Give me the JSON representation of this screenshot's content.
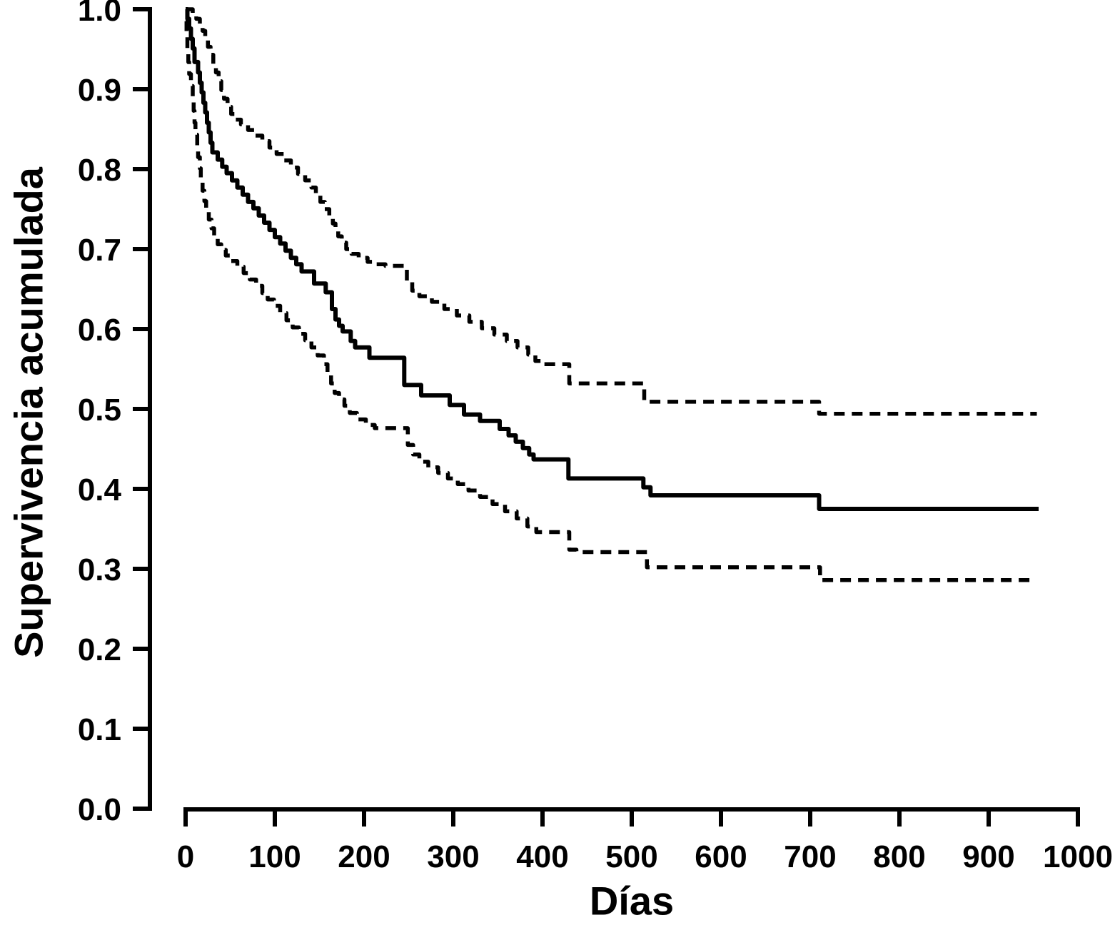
{
  "figure": {
    "background_color": "#ffffff",
    "ink_color": "#000000"
  },
  "chart_data": {
    "type": "line",
    "subtype": "kaplan_meier_step_curve",
    "title": "",
    "xlabel": "Días",
    "ylabel": "Supervivencia acumulada",
    "xlim": [
      0,
      1000
    ],
    "ylim": [
      0.0,
      1.0
    ],
    "x_ticks": [
      0,
      100,
      200,
      300,
      400,
      500,
      600,
      700,
      800,
      900,
      1000
    ],
    "y_tick_labels": [
      "0.0",
      "0.1",
      "0.2",
      "0.3",
      "0.4",
      "0.5",
      "0.6",
      "0.7",
      "0.8",
      "0.9",
      "1.0"
    ],
    "grid": false,
    "legend_position": "none",
    "series": [
      {
        "id": "estimate",
        "line_style": "solid",
        "step": true,
        "points": [
          [
            0,
            1.0
          ],
          [
            2,
            0.988
          ],
          [
            4,
            0.976
          ],
          [
            6,
            0.963
          ],
          [
            8,
            0.951
          ],
          [
            10,
            0.934
          ],
          [
            14,
            0.921
          ],
          [
            16,
            0.908
          ],
          [
            18,
            0.896
          ],
          [
            20,
            0.883
          ],
          [
            22,
            0.871
          ],
          [
            24,
            0.858
          ],
          [
            26,
            0.846
          ],
          [
            28,
            0.833
          ],
          [
            30,
            0.821
          ],
          [
            36,
            0.812
          ],
          [
            41,
            0.803
          ],
          [
            46,
            0.795
          ],
          [
            52,
            0.786
          ],
          [
            58,
            0.777
          ],
          [
            64,
            0.768
          ],
          [
            70,
            0.759
          ],
          [
            76,
            0.751
          ],
          [
            82,
            0.742
          ],
          [
            88,
            0.733
          ],
          [
            94,
            0.724
          ],
          [
            100,
            0.715
          ],
          [
            106,
            0.707
          ],
          [
            112,
            0.698
          ],
          [
            118,
            0.689
          ],
          [
            124,
            0.681
          ],
          [
            130,
            0.672
          ],
          [
            144,
            0.657
          ],
          [
            157,
            0.646
          ],
          [
            164,
            0.625
          ],
          [
            168,
            0.612
          ],
          [
            172,
            0.604
          ],
          [
            176,
            0.597
          ],
          [
            185,
            0.585
          ],
          [
            190,
            0.577
          ],
          [
            206,
            0.564
          ],
          [
            245,
            0.53
          ],
          [
            264,
            0.517
          ],
          [
            296,
            0.505
          ],
          [
            312,
            0.493
          ],
          [
            330,
            0.485
          ],
          [
            352,
            0.475
          ],
          [
            362,
            0.467
          ],
          [
            370,
            0.459
          ],
          [
            378,
            0.451
          ],
          [
            385,
            0.443
          ],
          [
            390,
            0.437
          ],
          [
            429,
            0.413
          ],
          [
            513,
            0.402
          ],
          [
            521,
            0.392
          ],
          [
            710,
            0.375
          ],
          [
            956,
            0.375
          ]
        ]
      },
      {
        "id": "upper_ci",
        "line_style": "dashed",
        "step": true,
        "points": [
          [
            0,
            1.0
          ],
          [
            8,
            0.994
          ],
          [
            12,
            0.988
          ],
          [
            16,
            0.982
          ],
          [
            19,
            0.973
          ],
          [
            22,
            0.963
          ],
          [
            25,
            0.953
          ],
          [
            28,
            0.943
          ],
          [
            31,
            0.932
          ],
          [
            34,
            0.921
          ],
          [
            37,
            0.91
          ],
          [
            40,
            0.899
          ],
          [
            43,
            0.888
          ],
          [
            47,
            0.878
          ],
          [
            51,
            0.869
          ],
          [
            56,
            0.862
          ],
          [
            62,
            0.856
          ],
          [
            70,
            0.849
          ],
          [
            78,
            0.842
          ],
          [
            86,
            0.835
          ],
          [
            94,
            0.827
          ],
          [
            102,
            0.819
          ],
          [
            110,
            0.811
          ],
          [
            118,
            0.802
          ],
          [
            126,
            0.794
          ],
          [
            134,
            0.786
          ],
          [
            141,
            0.777
          ],
          [
            146,
            0.768
          ],
          [
            151,
            0.759
          ],
          [
            156,
            0.75
          ],
          [
            161,
            0.741
          ],
          [
            165,
            0.732
          ],
          [
            168,
            0.724
          ],
          [
            171,
            0.716
          ],
          [
            175,
            0.708
          ],
          [
            180,
            0.7
          ],
          [
            186,
            0.694
          ],
          [
            194,
            0.689
          ],
          [
            204,
            0.684
          ],
          [
            214,
            0.681
          ],
          [
            224,
            0.679
          ],
          [
            248,
            0.659
          ],
          [
            254,
            0.648
          ],
          [
            262,
            0.641
          ],
          [
            276,
            0.634
          ],
          [
            290,
            0.625
          ],
          [
            304,
            0.617
          ],
          [
            318,
            0.609
          ],
          [
            332,
            0.601
          ],
          [
            346,
            0.593
          ],
          [
            360,
            0.585
          ],
          [
            372,
            0.577
          ],
          [
            384,
            0.568
          ],
          [
            392,
            0.56
          ],
          [
            398,
            0.556
          ],
          [
            430,
            0.532
          ],
          [
            514,
            0.509
          ],
          [
            710,
            0.494
          ],
          [
            954,
            0.494
          ]
        ]
      },
      {
        "id": "lower_ci",
        "line_style": "dashed",
        "step": true,
        "points": [
          [
            0,
            0.985
          ],
          [
            1,
            0.967
          ],
          [
            2,
            0.95
          ],
          [
            3,
            0.934
          ],
          [
            4,
            0.919
          ],
          [
            6,
            0.904
          ],
          [
            8,
            0.888
          ],
          [
            9,
            0.873
          ],
          [
            10,
            0.858
          ],
          [
            11,
            0.843
          ],
          [
            13,
            0.829
          ],
          [
            14,
            0.815
          ],
          [
            16,
            0.801
          ],
          [
            17,
            0.787
          ],
          [
            19,
            0.773
          ],
          [
            21,
            0.76
          ],
          [
            23,
            0.748
          ],
          [
            26,
            0.737
          ],
          [
            29,
            0.726
          ],
          [
            32,
            0.715
          ],
          [
            36,
            0.706
          ],
          [
            40,
            0.699
          ],
          [
            45,
            0.692
          ],
          [
            51,
            0.685
          ],
          [
            58,
            0.678
          ],
          [
            65,
            0.67
          ],
          [
            72,
            0.662
          ],
          [
            79,
            0.654
          ],
          [
            86,
            0.645
          ],
          [
            92,
            0.637
          ],
          [
            99,
            0.629
          ],
          [
            106,
            0.62
          ],
          [
            113,
            0.611
          ],
          [
            120,
            0.602
          ],
          [
            127,
            0.594
          ],
          [
            134,
            0.586
          ],
          [
            141,
            0.577
          ],
          [
            148,
            0.567
          ],
          [
            155,
            0.556
          ],
          [
            159,
            0.545
          ],
          [
            163,
            0.532
          ],
          [
            167,
            0.52
          ],
          [
            172,
            0.512
          ],
          [
            178,
            0.504
          ],
          [
            184,
            0.495
          ],
          [
            192,
            0.487
          ],
          [
            202,
            0.48
          ],
          [
            212,
            0.476
          ],
          [
            249,
            0.455
          ],
          [
            255,
            0.443
          ],
          [
            262,
            0.434
          ],
          [
            272,
            0.427
          ],
          [
            283,
            0.42
          ],
          [
            294,
            0.413
          ],
          [
            305,
            0.406
          ],
          [
            317,
            0.398
          ],
          [
            330,
            0.39
          ],
          [
            344,
            0.381
          ],
          [
            358,
            0.372
          ],
          [
            371,
            0.363
          ],
          [
            383,
            0.353
          ],
          [
            393,
            0.346
          ],
          [
            430,
            0.324
          ],
          [
            438,
            0.321
          ],
          [
            517,
            0.302
          ],
          [
            711,
            0.286
          ],
          [
            950,
            0.286
          ]
        ]
      }
    ]
  }
}
